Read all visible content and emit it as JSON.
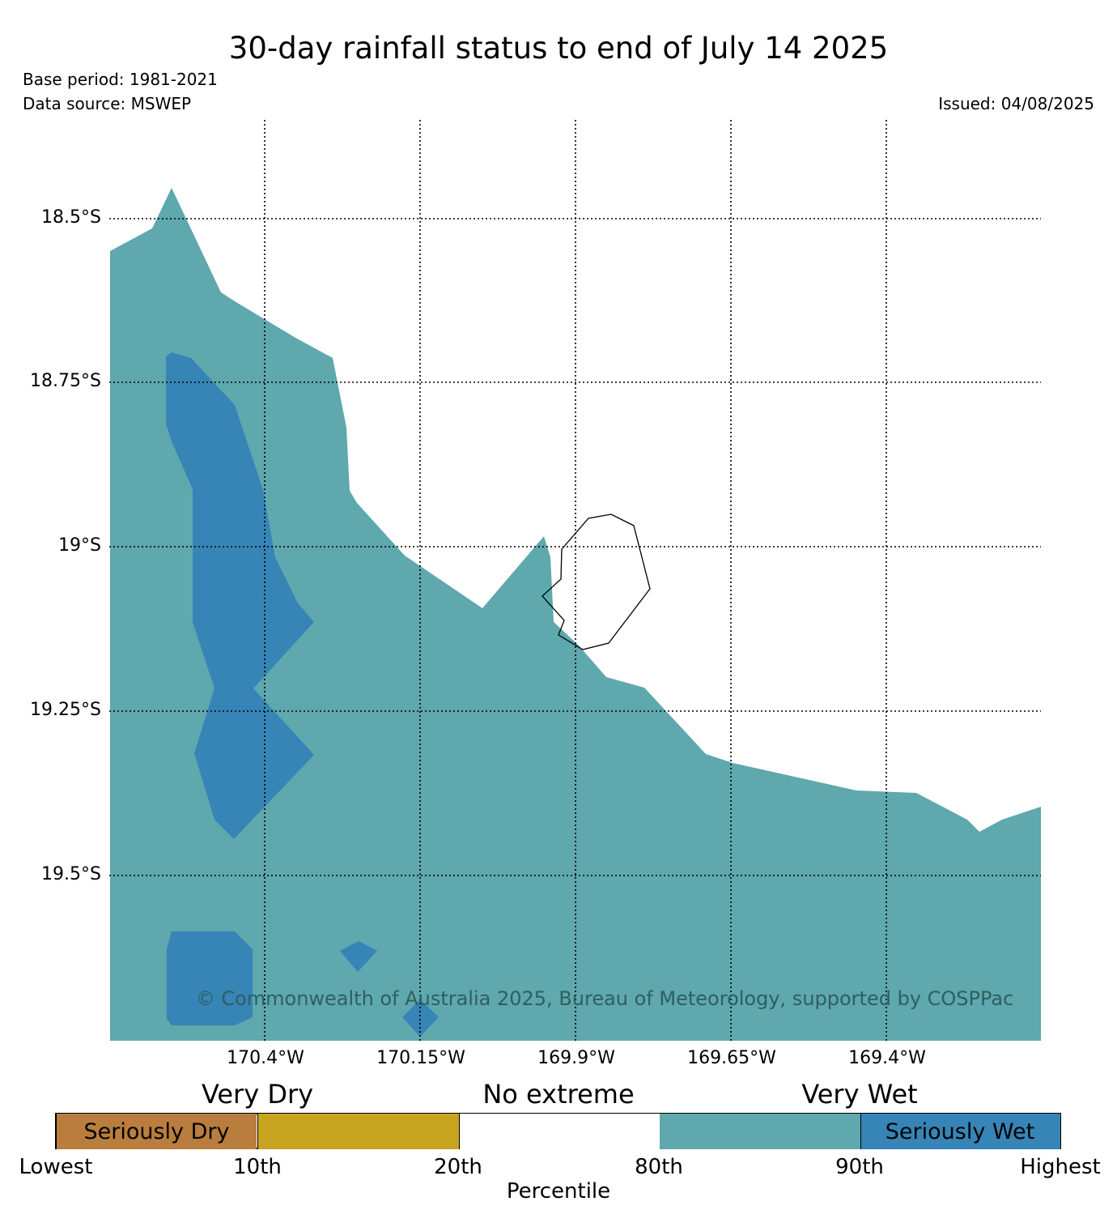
{
  "header": {
    "title": "30-day rainfall status to end of July 14 2025",
    "base_period": "Base period: 1981-2021",
    "data_source": "Data source: MSWEP",
    "issued": "Issued: 04/08/2025"
  },
  "map": {
    "lat_labels": [
      "18.5°S",
      "18.75°S",
      "19°S",
      "19.25°S",
      "19.5°S"
    ],
    "lon_labels": [
      "170.4°W",
      "170.15°W",
      "169.9°W",
      "169.65°W",
      "169.4°W"
    ],
    "copyright": "© Commonwealth of Australia 2025, Bureau of Meteorology, supported by COSPPac",
    "colors": {
      "very_wet": "#5ea8ae",
      "seriously_wet": "#3685b6",
      "no_extreme": "#ffffff"
    }
  },
  "legend": {
    "categories": [
      "Very Dry",
      "No extreme",
      "Very Wet"
    ],
    "segments": [
      {
        "label": "Seriously Dry",
        "color": "#b97d3e"
      },
      {
        "label": "",
        "color": "#c6a41f"
      },
      {
        "label": "",
        "color": "#ffffff"
      },
      {
        "label": "",
        "color": "#5ea8ae"
      },
      {
        "label": "Seriously Wet",
        "color": "#3685b6"
      }
    ],
    "ticks": [
      "Lowest",
      "10th",
      "20th",
      "80th",
      "90th",
      "Highest"
    ],
    "axis_title": "Percentile"
  }
}
